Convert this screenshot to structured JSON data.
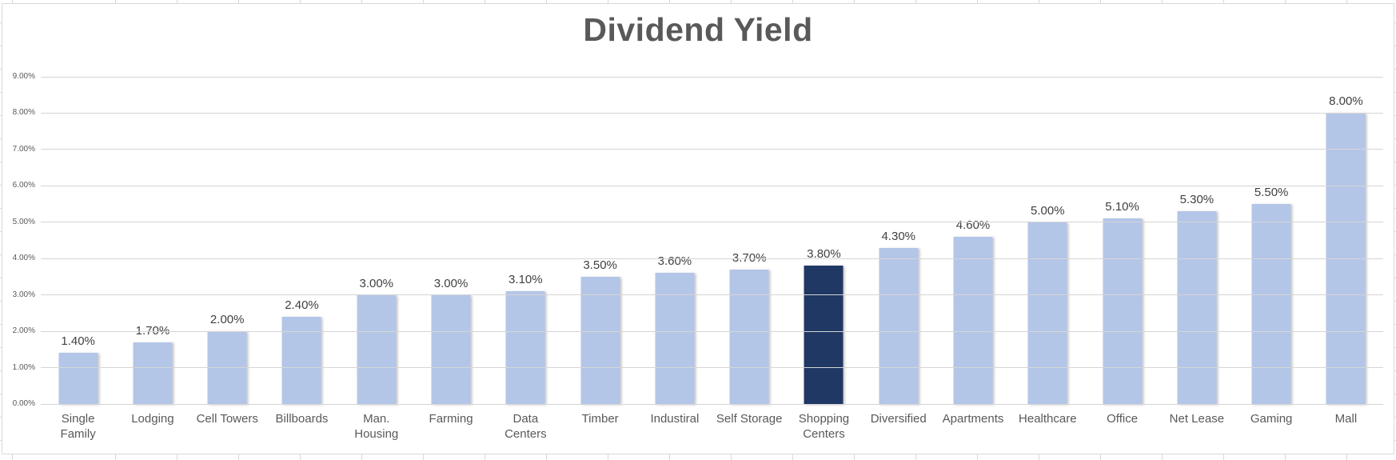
{
  "title": "Dividend Yield",
  "chart_data": {
    "type": "bar",
    "title": "Dividend Yield",
    "categories": [
      "Single\nFamily",
      "Lodging",
      "Cell Towers",
      "Billboards",
      "Man.\nHousing",
      "Farming",
      "Data\nCenters",
      "Timber",
      "Industiral",
      "Self Storage",
      "Shopping\nCenters",
      "Diversified",
      "Apartments",
      "Healthcare",
      "Office",
      "Net Lease",
      "Gaming",
      "Mall"
    ],
    "values": [
      1.4,
      1.7,
      2.0,
      2.4,
      3.0,
      3.0,
      3.1,
      3.5,
      3.6,
      3.7,
      3.8,
      4.3,
      4.6,
      5.0,
      5.1,
      5.3,
      5.5,
      8.0
    ],
    "data_labels": [
      "1.40%",
      "1.70%",
      "2.00%",
      "2.40%",
      "3.00%",
      "3.00%",
      "3.10%",
      "3.50%",
      "3.60%",
      "3.70%",
      "3.80%",
      "4.30%",
      "4.60%",
      "5.00%",
      "5.10%",
      "5.30%",
      "5.50%",
      "8.00%"
    ],
    "y_ticks": [
      "0.00%",
      "1.00%",
      "2.00%",
      "3.00%",
      "4.00%",
      "5.00%",
      "6.00%",
      "7.00%",
      "8.00%",
      "9.00%"
    ],
    "ylim": [
      0,
      9
    ],
    "grid": true,
    "legend": "none",
    "xlabel": "",
    "ylabel": "",
    "bar_color": "#b4c6e7",
    "highlight_index": 10,
    "highlight_color": "#1f3864"
  },
  "colors": {
    "title_text": "#595959",
    "axis_text": "#595959",
    "value_text": "#404040",
    "gridline": "#d5d5d5",
    "frame_border": "#d9d9d9",
    "background": "#ffffff"
  }
}
